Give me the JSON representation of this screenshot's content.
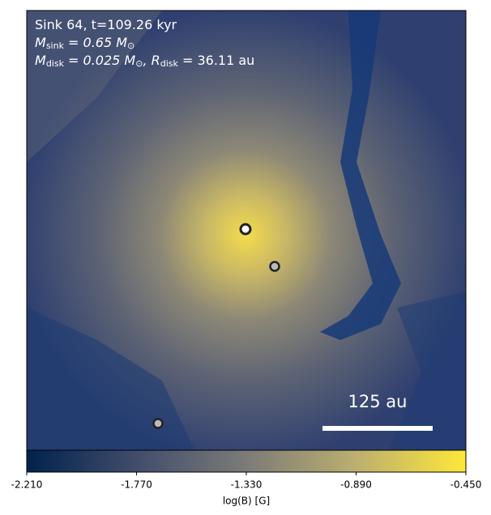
{
  "chart_data": {
    "type": "heatmap",
    "annotations": [
      [
        {
          "t": "Sink 64, t=109.26 kyr",
          "sub": false
        }
      ],
      [
        {
          "t": "M",
          "sub": false
        },
        {
          "t": "sink",
          "sub": true
        },
        {
          "t": " = 0.65 M",
          "sub": false
        },
        {
          "t": "⊙",
          "sub": true
        }
      ],
      [
        {
          "t": "M",
          "sub": false
        },
        {
          "t": "disk",
          "sub": true
        },
        {
          "t": " = 0.025 M",
          "sub": false
        },
        {
          "t": "⊙",
          "sub": true
        },
        {
          "t": ", R",
          "sub": false
        },
        {
          "t": "disk",
          "sub": true
        },
        {
          "t": " = 36.11 au",
          "sub": false
        }
      ]
    ],
    "scale_bar": "125 au",
    "colorbar": {
      "label": "log(B) [G]",
      "lim": [
        -2.21,
        -0.45
      ],
      "colors": [
        "#00224e",
        "#414d6b",
        "#7c7b78",
        "#bcaf6f",
        "#fee838"
      ],
      "ticks": [
        {
          "value": -2.21,
          "label": "-2.210"
        },
        {
          "value": -1.77,
          "label": "-1.770"
        },
        {
          "value": -1.33,
          "label": "-1.330"
        },
        {
          "value": -0.89,
          "label": "-0.890"
        },
        {
          "value": -0.45,
          "label": "-0.450"
        }
      ]
    }
  }
}
